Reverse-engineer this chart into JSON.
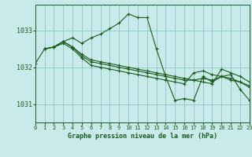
{
  "background_color": "#c8eaea",
  "grid_color": "#7fbfbf",
  "line_color": "#1a5c1a",
  "marker_color": "#1a5c1a",
  "xlabel": "Graphe pression niveau de la mer (hPa)",
  "xlim": [
    0,
    23
  ],
  "ylim": [
    1030.5,
    1033.7
  ],
  "yticks": [
    1031,
    1032,
    1033
  ],
  "xticks": [
    0,
    1,
    2,
    3,
    4,
    5,
    6,
    7,
    8,
    9,
    10,
    11,
    12,
    13,
    14,
    15,
    16,
    17,
    18,
    19,
    20,
    21,
    22,
    23
  ],
  "series": [
    {
      "x": [
        0,
        1,
        2,
        3,
        4,
        5,
        6,
        7,
        8,
        9,
        10,
        11,
        12,
        13,
        14,
        15,
        16,
        17,
        18,
        19,
        20,
        21,
        22,
        23
      ],
      "y": [
        1032.1,
        1032.5,
        1032.55,
        1032.7,
        1032.8,
        1032.65,
        1032.8,
        1032.9,
        1033.05,
        1033.2,
        1033.45,
        1033.35,
        1033.35,
        1032.5,
        1031.75,
        1031.1,
        1031.15,
        1031.1,
        1031.75,
        1031.6,
        1031.75,
        1031.8,
        1031.4,
        1031.1
      ]
    },
    {
      "x": [
        1,
        2,
        3,
        4,
        5,
        6,
        7,
        8,
        9,
        10,
        11,
        12,
        13,
        14,
        15,
        16,
        17,
        18,
        19,
        20,
        21,
        22,
        23
      ],
      "y": [
        1032.5,
        1032.55,
        1032.7,
        1032.55,
        1032.35,
        1032.2,
        1032.15,
        1032.1,
        1032.05,
        1032.0,
        1031.95,
        1031.9,
        1031.85,
        1031.8,
        1031.75,
        1031.7,
        1031.65,
        1031.6,
        1031.55,
        1031.95,
        1031.85,
        1031.75,
        1031.6
      ]
    },
    {
      "x": [
        1,
        2,
        3,
        4,
        5,
        6,
        7,
        8,
        9,
        10,
        11,
        12,
        13,
        14,
        15,
        16,
        17,
        18,
        19,
        20,
        21,
        22,
        23
      ],
      "y": [
        1032.5,
        1032.55,
        1032.7,
        1032.55,
        1032.3,
        1032.15,
        1032.1,
        1032.05,
        1032.0,
        1031.95,
        1031.9,
        1031.85,
        1031.8,
        1031.75,
        1031.7,
        1031.65,
        1031.65,
        1031.7,
        1031.65,
        1031.75,
        1031.7,
        1031.6,
        1031.5
      ]
    },
    {
      "x": [
        1,
        2,
        3,
        4,
        5,
        6,
        7,
        8,
        9,
        10,
        11,
        12,
        13,
        14,
        15,
        16,
        17,
        18,
        19,
        20,
        21,
        22,
        23
      ],
      "y": [
        1032.5,
        1032.55,
        1032.65,
        1032.5,
        1032.25,
        1032.05,
        1032.0,
        1031.95,
        1031.9,
        1031.85,
        1031.8,
        1031.75,
        1031.7,
        1031.65,
        1031.6,
        1031.55,
        1031.85,
        1031.9,
        1031.8,
        1031.75,
        1031.65,
        1031.6,
        1031.45
      ]
    }
  ]
}
